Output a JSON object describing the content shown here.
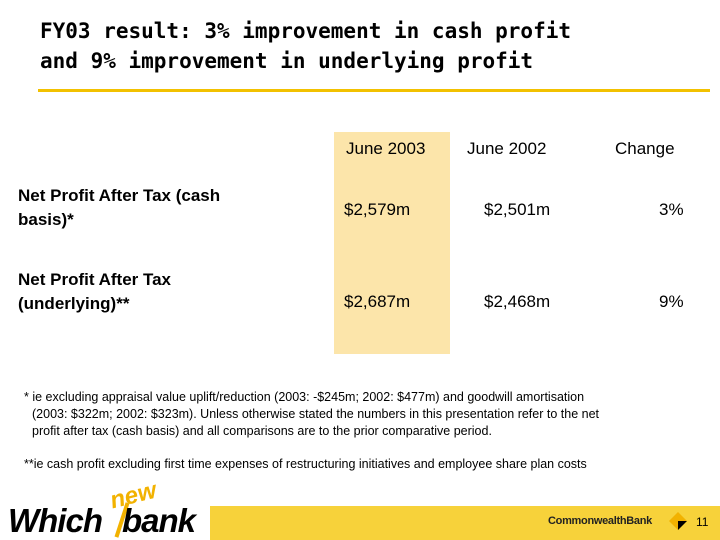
{
  "slide": {
    "title_line1": "FY03 result: 3% improvement in cash profit",
    "title_line2": "and 9% improvement in underlying profit"
  },
  "table": {
    "headers": [
      "June 2003",
      "June 2002",
      "Change"
    ],
    "rows": [
      {
        "label_line1": "Net Profit After Tax (cash",
        "label_line2": "basis)*",
        "june_2003": "$2,579m",
        "june_2002": "$2,501m",
        "change": "3%"
      },
      {
        "label_line1": "Net Profit After Tax",
        "label_line2": "(underlying)**",
        "june_2003": "$2,687m",
        "june_2002": "$2,468m",
        "change": "9%"
      }
    ]
  },
  "footnotes": {
    "note1_line1": "* ie excluding appraisal value uplift/reduction (2003: -$245m; 2002: $477m) and goodwill amortisation",
    "note1_line2": "(2003: $322m; 2002: $323m). Unless otherwise stated the numbers in this presentation refer to the net",
    "note1_line3": "profit after tax (cash basis) and all comparisons are to the prior comparative period.",
    "note2": "**ie cash profit excluding first time expenses of restructuring initiatives and employee share plan costs"
  },
  "footer": {
    "brand_which": "Which",
    "brand_new": "new",
    "brand_bank": "bank",
    "bank_name": "CommonwealthBank",
    "page_number": "11"
  },
  "colors": {
    "accent_yellow": "#f2c100",
    "highlight_column": "#fce5aa",
    "footer_bar": "#f7d23a"
  }
}
